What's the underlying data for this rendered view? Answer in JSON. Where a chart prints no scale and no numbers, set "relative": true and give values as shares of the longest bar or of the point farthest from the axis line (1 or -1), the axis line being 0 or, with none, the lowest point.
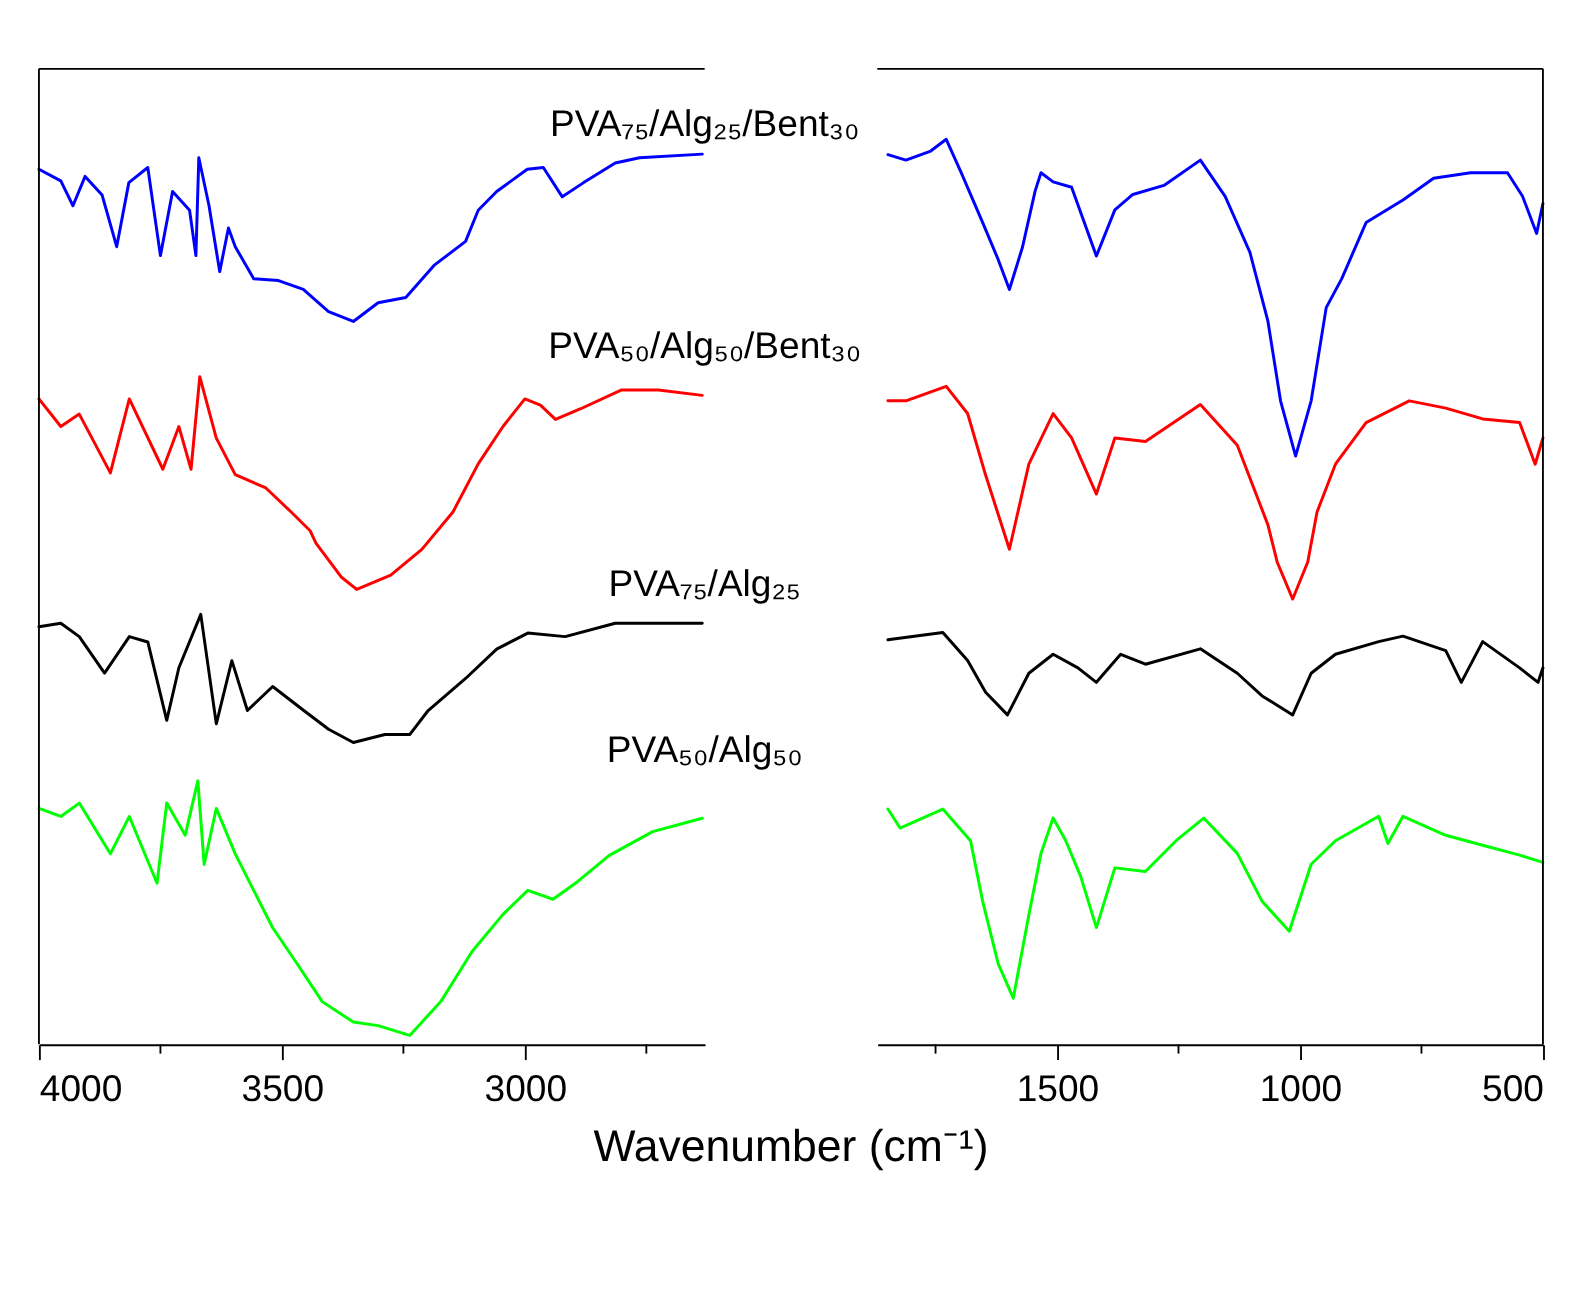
{
  "chart_data": [
    {
      "type": "line",
      "relative": true,
      "xlabel": "Wavenumber (cm⁻¹)",
      "tick_labels": "x",
      "xlim": [
        4000,
        2630
      ],
      "xticks": [
        4000,
        {
          "value": 3750,
          "label": null
        },
        3500,
        {
          "value": 3250,
          "label": null
        },
        3000,
        {
          "value": 2750,
          "label": null
        }
      ],
      "line_style": "solid",
      "marker": "none",
      "series": [
        {
          "name": "PVA₇₅/Alg₂₅/Bent₃₀",
          "color": "#0000ff",
          "x": [
            4000,
            3955,
            3930,
            3905,
            3870,
            3840,
            3815,
            3776,
            3750,
            3725,
            3690,
            3677,
            3671,
            3650,
            3628,
            3610,
            3596,
            3558,
            3507,
            3456,
            3404,
            3353,
            3302,
            3245,
            3187,
            3122,
            3096,
            3058,
            2995,
            2962,
            2923,
            2879,
            2814,
            2764,
            2635
          ],
          "values": [
            0.983,
            0.97,
            0.942,
            0.975,
            0.954,
            0.896,
            0.968,
            0.985,
            0.886,
            0.958,
            0.937,
            0.886,
            0.996,
            0.942,
            0.868,
            0.917,
            0.896,
            0.86,
            0.858,
            0.848,
            0.823,
            0.812,
            0.833,
            0.839,
            0.875,
            0.902,
            0.937,
            0.958,
            0.983,
            0.985,
            0.952,
            0.968,
            0.99,
            0.996,
            1.0
          ]
        },
        {
          "name": "PVA₅₀/Alg₅₀/Bent₃₀",
          "color": "#ff0000",
          "x": [
            4000,
            3955,
            3917,
            3853,
            3814,
            3745,
            3712,
            3687,
            3669,
            3635,
            3596,
            3533,
            3481,
            3442,
            3430,
            3378,
            3346,
            3276,
            3212,
            3148,
            3096,
            3045,
            3000,
            2968,
            2937,
            2885,
            2802,
            2725,
            2635
          ],
          "values": [
            0.725,
            0.694,
            0.708,
            0.642,
            0.725,
            0.646,
            0.694,
            0.646,
            0.75,
            0.681,
            0.64,
            0.625,
            0.598,
            0.577,
            0.563,
            0.525,
            0.511,
            0.527,
            0.556,
            0.598,
            0.652,
            0.694,
            0.725,
            0.718,
            0.702,
            0.714,
            0.735,
            0.735,
            0.729
          ]
        },
        {
          "name": "PVA₇₅/Alg₂₅",
          "color": "#000000",
          "x": [
            4000,
            3955,
            3917,
            3865,
            3814,
            3776,
            3737,
            3712,
            3667,
            3635,
            3603,
            3571,
            3519,
            3455,
            3404,
            3353,
            3288,
            3237,
            3199,
            3122,
            3058,
            2994,
            2917,
            2814,
            2635
          ],
          "values": [
            0.469,
            0.473,
            0.458,
            0.417,
            0.458,
            0.452,
            0.364,
            0.423,
            0.483,
            0.36,
            0.431,
            0.375,
            0.402,
            0.375,
            0.354,
            0.339,
            0.348,
            0.348,
            0.375,
            0.411,
            0.444,
            0.462,
            0.458,
            0.473,
            0.473
          ]
        },
        {
          "name": "PVA₅₀/Alg₅₀",
          "color": "#00ff00",
          "x": [
            4000,
            3955,
            3917,
            3853,
            3814,
            3757,
            3737,
            3699,
            3673,
            3660,
            3635,
            3596,
            3558,
            3519,
            3468,
            3417,
            3353,
            3302,
            3237,
            3173,
            3109,
            3045,
            2994,
            2942,
            2891,
            2827,
            2737,
            2635
          ],
          "values": [
            0.265,
            0.256,
            0.271,
            0.214,
            0.256,
            0.181,
            0.271,
            0.235,
            0.296,
            0.202,
            0.265,
            0.214,
            0.173,
            0.131,
            0.09,
            0.048,
            0.025,
            0.021,
            0.01,
            0.048,
            0.104,
            0.146,
            0.173,
            0.163,
            0.183,
            0.212,
            0.239,
            0.254
          ]
        }
      ]
    },
    {
      "type": "line",
      "relative": true,
      "tick_labels": "x",
      "xlim": [
        1870,
        500
      ],
      "xticks": [
        {
          "value": 1750,
          "label": null
        },
        1500,
        {
          "value": 1250,
          "label": null
        },
        1000,
        {
          "value": 750,
          "label": null
        },
        500
      ],
      "line_style": "solid",
      "marker": "none",
      "series": [
        {
          "color": "#0000ff",
          "x": [
            1848,
            1811,
            1760,
            1728,
            1697,
            1653,
            1621,
            1598,
            1571,
            1545,
            1533,
            1508,
            1470,
            1419,
            1381,
            1344,
            1280,
            1205,
            1154,
            1103,
            1066,
            1040,
            1009,
            977,
            946,
            914,
            864,
            788,
            725,
            649,
            573,
            542,
            513,
            500
          ],
          "values": [
            0.983,
            0.977,
            0.987,
            1.0,
            0.963,
            0.908,
            0.867,
            0.834,
            0.881,
            0.943,
            0.963,
            0.953,
            0.947,
            0.871,
            0.922,
            0.939,
            0.949,
            0.977,
            0.937,
            0.875,
            0.799,
            0.711,
            0.65,
            0.711,
            0.814,
            0.846,
            0.908,
            0.933,
            0.957,
            0.963,
            0.963,
            0.937,
            0.896,
            0.929
          ]
        },
        {
          "color": "#ff0000",
          "x": [
            1848,
            1811,
            1728,
            1684,
            1647,
            1598,
            1558,
            1508,
            1470,
            1419,
            1381,
            1318,
            1205,
            1129,
            1066,
            1047,
            1015,
            984,
            965,
            927,
            864,
            775,
            700,
            624,
            548,
            516,
            500
          ],
          "values": [
            0.711,
            0.711,
            0.727,
            0.697,
            0.629,
            0.547,
            0.641,
            0.697,
            0.67,
            0.608,
            0.67,
            0.666,
            0.707,
            0.662,
            0.574,
            0.533,
            0.492,
            0.533,
            0.588,
            0.641,
            0.687,
            0.711,
            0.703,
            0.691,
            0.687,
            0.641,
            0.67
          ]
        },
        {
          "color": "#000000",
          "x": [
            1848,
            1735,
            1684,
            1647,
            1602,
            1558,
            1508,
            1457,
            1419,
            1369,
            1318,
            1205,
            1129,
            1078,
            1015,
            977,
            927,
            838,
            788,
            700,
            668,
            624,
            548,
            510,
            500
          ],
          "values": [
            0.447,
            0.455,
            0.424,
            0.389,
            0.364,
            0.41,
            0.431,
            0.416,
            0.4,
            0.431,
            0.42,
            0.437,
            0.41,
            0.385,
            0.364,
            0.41,
            0.431,
            0.445,
            0.451,
            0.435,
            0.4,
            0.445,
            0.416,
            0.4,
            0.416
          ]
        },
        {
          "color": "#00ff00",
          "x": [
            1848,
            1823,
            1735,
            1678,
            1653,
            1621,
            1590,
            1558,
            1533,
            1508,
            1482,
            1451,
            1419,
            1381,
            1318,
            1255,
            1198,
            1129,
            1078,
            1022,
            977,
            927,
            838,
            819,
            788,
            700,
            624,
            548,
            500
          ],
          "values": [
            0.26,
            0.239,
            0.26,
            0.225,
            0.158,
            0.089,
            0.051,
            0.143,
            0.211,
            0.25,
            0.225,
            0.185,
            0.129,
            0.195,
            0.191,
            0.225,
            0.25,
            0.211,
            0.158,
            0.125,
            0.199,
            0.225,
            0.252,
            0.222,
            0.252,
            0.231,
            0.22,
            0.209,
            0.201
          ]
        }
      ]
    }
  ]
}
